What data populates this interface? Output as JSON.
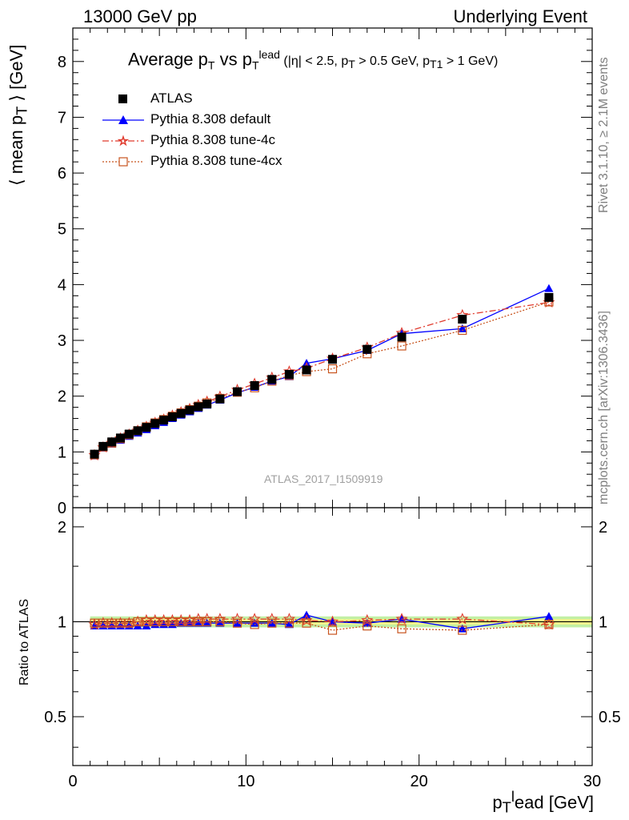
{
  "header": {
    "left": "13000 GeV pp",
    "right": "Underlying Event"
  },
  "title": {
    "main_a": "Average p",
    "main_a_sub": "T",
    "main_b": " vs p",
    "main_b_sub": "T",
    "main_b_sup": "lead",
    "cond": " (|η| < 2.5, p",
    "cond_sub1": "T",
    "cond_mid": " > 0.5 GeV, p",
    "cond_sub2": "T1",
    "cond_end": " > 1 GeV)"
  },
  "side_labels": {
    "rivet": "Rivet 3.1.10, ≥ 2.1M events",
    "mcplots": "mcplots.cern.ch [arXiv:1306.3436]"
  },
  "watermark": "ATLAS_2017_I1509919",
  "axis_labels": {
    "y_main": "⟨ mean p",
    "y_main_sub": "T",
    "y_main_end": " ⟩ [GeV]",
    "y_ratio": "Ratio to ATLAS",
    "x": "p",
    "x_sub": "T",
    "x_sup": "l",
    "x_end": "ead [GeV]"
  },
  "legend": [
    "ATLAS",
    "Pythia 8.308 default",
    "Pythia 8.308 tune-4c",
    "Pythia 8.308 tune-4cx"
  ],
  "colors": {
    "atlas": "#000000",
    "default": "#0000ff",
    "tune4c": "#e03b2e",
    "tune4cx": "#c8541e",
    "band_inner": "#f5f58c",
    "band_outer": "#c2f0a4"
  },
  "chart_data": {
    "type": "line",
    "x": [
      1.25,
      1.75,
      2.25,
      2.75,
      3.25,
      3.75,
      4.25,
      4.75,
      5.25,
      5.75,
      6.25,
      6.75,
      7.25,
      7.75,
      8.5,
      9.5,
      10.5,
      11.5,
      12.5,
      13.5,
      15,
      17,
      19,
      22.5,
      27.5
    ],
    "series": [
      {
        "name": "ATLAS",
        "values": [
          0.96,
          1.1,
          1.18,
          1.25,
          1.32,
          1.38,
          1.44,
          1.51,
          1.57,
          1.63,
          1.69,
          1.75,
          1.81,
          1.86,
          1.95,
          2.08,
          2.19,
          2.3,
          2.39,
          2.47,
          2.66,
          2.84,
          3.06,
          3.38,
          3.77
        ]
      },
      {
        "name": "Pythia 8.308 default",
        "values": [
          0.93,
          1.07,
          1.14,
          1.21,
          1.28,
          1.34,
          1.4,
          1.47,
          1.53,
          1.6,
          1.66,
          1.72,
          1.78,
          1.84,
          1.93,
          2.06,
          2.16,
          2.27,
          2.35,
          2.59,
          2.67,
          2.82,
          3.12,
          3.21,
          3.93
        ]
      },
      {
        "name": "Pythia 8.308 tune-4c",
        "values": [
          0.94,
          1.08,
          1.16,
          1.24,
          1.31,
          1.38,
          1.45,
          1.52,
          1.58,
          1.65,
          1.71,
          1.77,
          1.84,
          1.9,
          1.99,
          2.11,
          2.22,
          2.33,
          2.44,
          2.5,
          2.67,
          2.87,
          3.13,
          3.45,
          3.68
        ]
      },
      {
        "name": "Pythia 8.308 tune-4cx",
        "values": [
          0.95,
          1.09,
          1.16,
          1.24,
          1.31,
          1.38,
          1.45,
          1.52,
          1.58,
          1.64,
          1.7,
          1.76,
          1.82,
          1.88,
          1.96,
          2.07,
          2.15,
          2.27,
          2.37,
          2.44,
          2.49,
          2.76,
          2.9,
          3.18,
          3.69
        ]
      }
    ],
    "ratio_series": [
      {
        "name": "Pythia 8.308 default",
        "values": [
          0.97,
          0.97,
          0.97,
          0.97,
          0.97,
          0.97,
          0.97,
          0.98,
          0.98,
          0.98,
          0.99,
          0.99,
          0.99,
          0.99,
          0.99,
          0.99,
          0.99,
          0.99,
          0.98,
          1.05,
          1.0,
          0.99,
          1.02,
          0.95,
          1.04
        ]
      },
      {
        "name": "Pythia 8.308 tune-4c",
        "values": [
          0.98,
          0.99,
          0.99,
          0.99,
          0.99,
          1.0,
          1.01,
          1.01,
          1.01,
          1.01,
          1.01,
          1.01,
          1.02,
          1.02,
          1.02,
          1.02,
          1.02,
          1.02,
          1.02,
          1.01,
          1.0,
          1.01,
          1.02,
          1.02,
          0.98
        ]
      },
      {
        "name": "Pythia 8.308 tune-4cx",
        "values": [
          0.99,
          0.99,
          0.99,
          0.99,
          0.99,
          1.0,
          1.0,
          1.0,
          1.0,
          1.0,
          1.0,
          1.0,
          1.0,
          1.0,
          1.0,
          0.99,
          0.98,
          0.99,
          0.99,
          0.99,
          0.94,
          0.97,
          0.95,
          0.94,
          0.98
        ]
      }
    ],
    "xlim": [
      0,
      30
    ],
    "ylim": [
      0,
      8.6
    ],
    "ratio_ylim": [
      0.35,
      2.3
    ],
    "x_ticks": [
      0,
      10,
      20,
      30
    ],
    "y_ticks": [
      0,
      1,
      2,
      3,
      4,
      5,
      6,
      7,
      8
    ],
    "ratio_ticks": [
      0.5,
      1,
      2
    ],
    "legend_position": "top-left"
  }
}
